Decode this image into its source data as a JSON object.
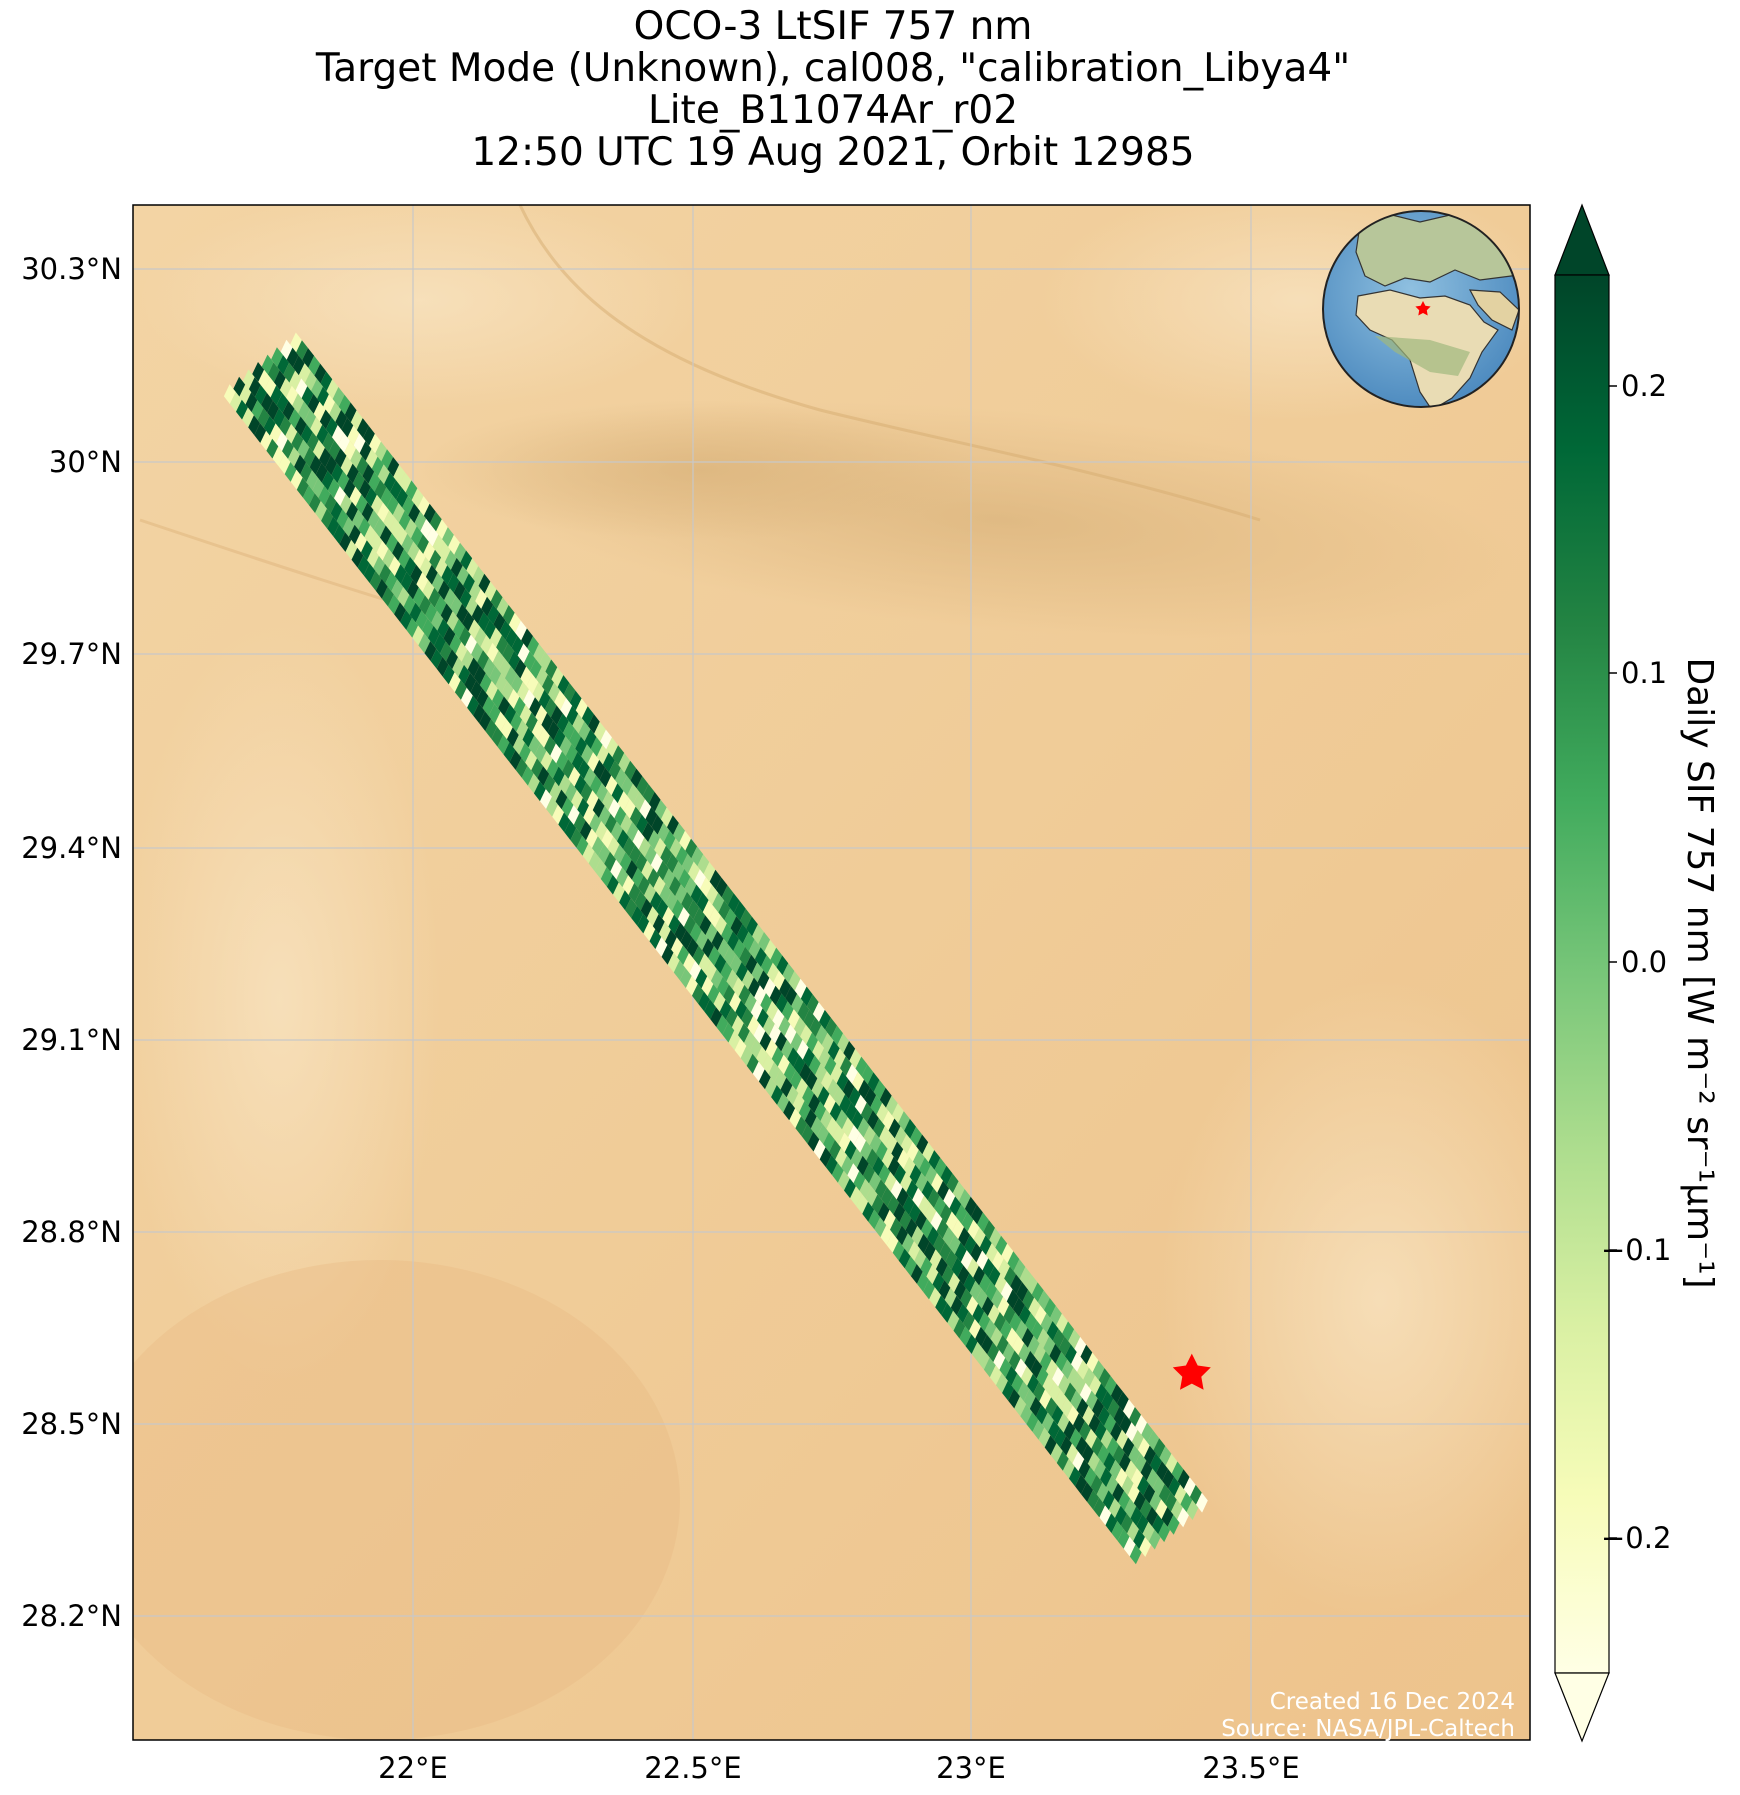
{
  "title_lines": [
    "OCO-3 LtSIF 757 nm",
    "Target Mode (Unknown), cal008, \"calibration_Libya4\"",
    "Lite_B11074Ar_r02",
    "12:50 UTC 19 Aug 2021, Orbit 12985"
  ],
  "map": {
    "lon_range": [
      21.48,
      24.0
    ],
    "lat_range": [
      27.97,
      30.4
    ],
    "lat_ticks": [
      "30.3°N",
      "30°N",
      "29.7°N",
      "29.4°N",
      "29.1°N",
      "28.8°N",
      "28.5°N",
      "28.2°N"
    ],
    "lon_ticks": [
      "22°E",
      "22.5°E",
      "23°E",
      "23.5°E"
    ],
    "grid": true,
    "background": "desert satellite imagery",
    "target_marker": {
      "lon": 23.39,
      "lat": 28.55,
      "color": "#ff0000",
      "symbol": "star"
    },
    "inset": "globe centered on Africa/Europe with red star at target"
  },
  "colorbar": {
    "label": "Daily SIF 757 nm [W m⁻² sr⁻¹μm⁻¹]",
    "ticks": [
      "0.2",
      "0.1",
      "0.0",
      "−0.1",
      "−0.2"
    ],
    "range": [
      -0.25,
      0.25
    ],
    "colormap": "YlGn",
    "extend": "both"
  },
  "credit": [
    "Created 16 Dec 2024",
    "Source: NASA/JPL-Caltech"
  ]
}
